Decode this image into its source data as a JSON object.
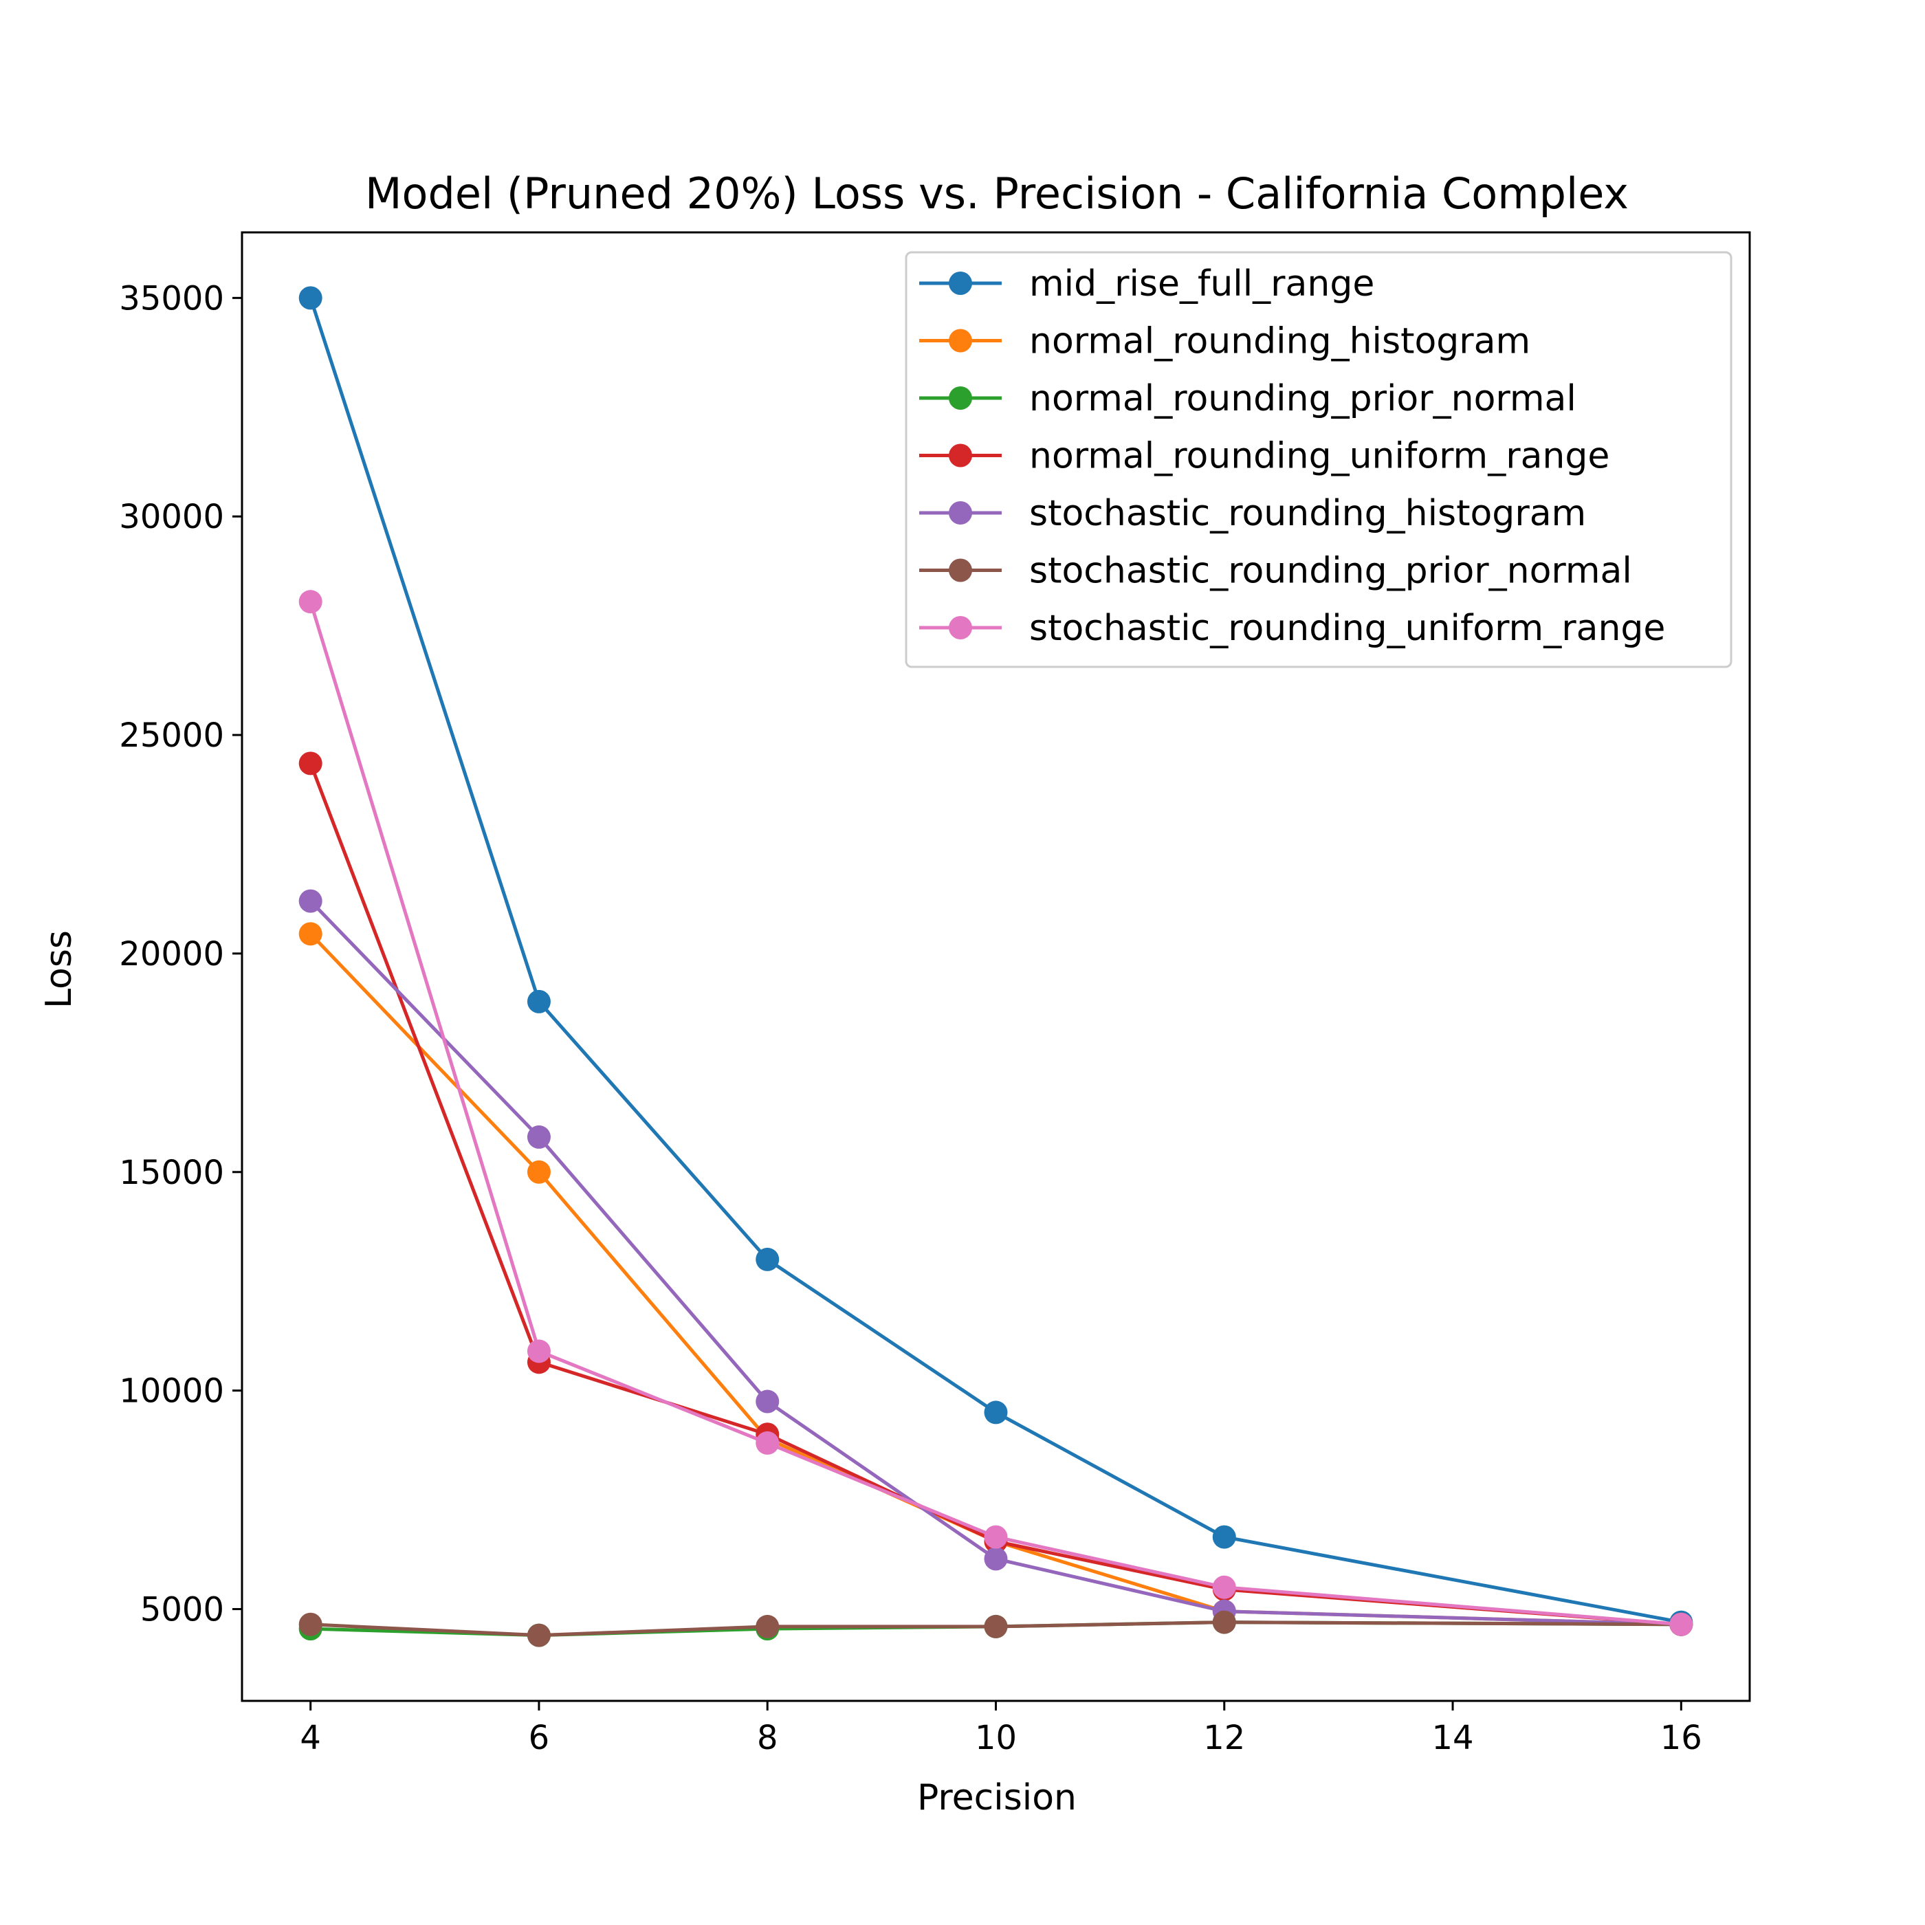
{
  "chart_data": {
    "type": "line",
    "title": "Model (Pruned 20%) Loss vs. Precision - California Complex",
    "xlabel": "Precision",
    "ylabel": "Loss",
    "x": [
      4,
      6,
      8,
      10,
      12,
      16
    ],
    "xticks": [
      4,
      6,
      8,
      10,
      12,
      14,
      16
    ],
    "yticks": [
      5000,
      10000,
      15000,
      20000,
      25000,
      30000,
      35000
    ],
    "xlim": [
      3.4,
      16.6
    ],
    "ylim": [
      2900,
      36500
    ],
    "grid": false,
    "legend_position": "top-right",
    "series": [
      {
        "name": "mid_rise_full_range",
        "color": "#1f77b4",
        "values": [
          35000,
          18900,
          13000,
          9500,
          6650,
          4700
        ]
      },
      {
        "name": "normal_rounding_histogram",
        "color": "#ff7f0e",
        "values": [
          20450,
          15000,
          8900,
          6550,
          4950,
          4650
        ]
      },
      {
        "name": "normal_rounding_prior_normal",
        "color": "#2ca02c",
        "values": [
          4550,
          4400,
          4550,
          4600,
          4700,
          4650
        ]
      },
      {
        "name": "normal_rounding_uniform_range",
        "color": "#d62728",
        "values": [
          24350,
          10650,
          9000,
          6550,
          5450,
          4650
        ]
      },
      {
        "name": "stochastic_rounding_histogram",
        "color": "#9467bd",
        "values": [
          21200,
          15800,
          9750,
          6150,
          4950,
          4650
        ]
      },
      {
        "name": "stochastic_rounding_prior_normal",
        "color": "#8c564b",
        "values": [
          4650,
          4400,
          4600,
          4600,
          4700,
          4650
        ]
      },
      {
        "name": "stochastic_rounding_uniform_range",
        "color": "#e377c2",
        "values": [
          28050,
          10900,
          8800,
          6650,
          5500,
          4650
        ]
      }
    ]
  }
}
